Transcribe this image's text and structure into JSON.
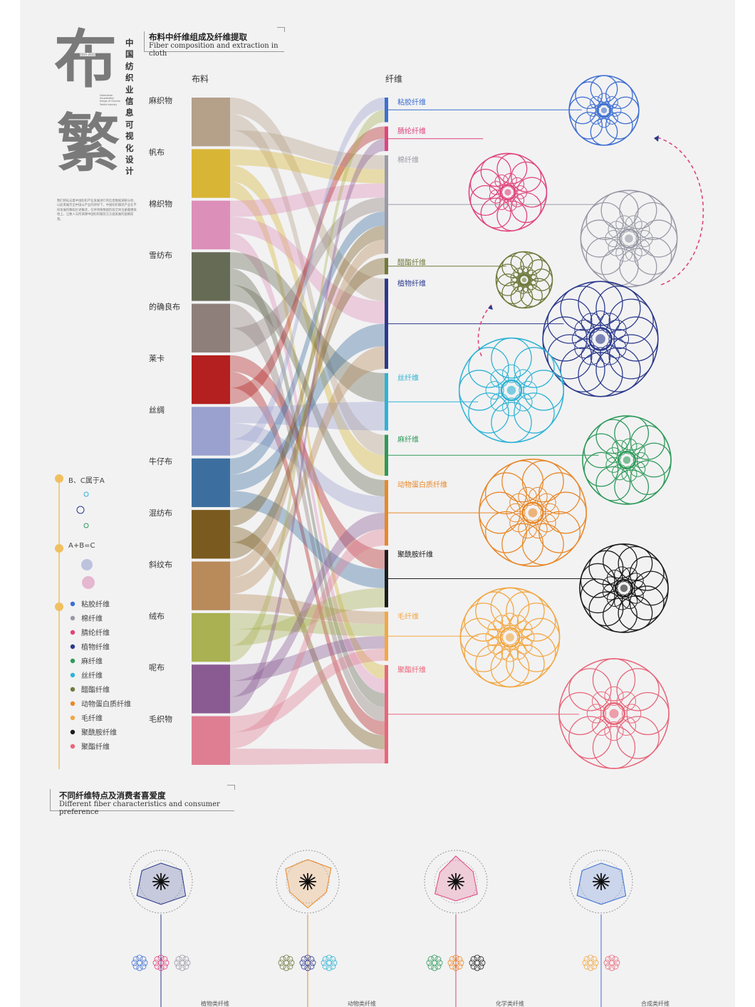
{
  "header": {
    "vertical_title": "中国纺织业信息可视化设计",
    "big_chars": [
      "布",
      "繁"
    ],
    "year_tag": "2021-2022",
    "small_en": "Information Visualization Design of Chinese Textile Industry",
    "intro_text": "我们将标志着中国纺织产业发展进行的信息数据调研分析，以此来展示出中国从产业的领导下，中国纺织服装产业在不同发展的舞蹈论述概述，在并将络数据阶段全体注册最模拟地上，让数人向所调课中国纺织服装方方面发展的面朝前景。"
  },
  "section1": {
    "title_cn": "布料中纤维组成及纤维提取",
    "title_en": "Fiber composition and extraction in cloth",
    "fabric_header": "布料",
    "fiber_header": "纤维"
  },
  "section2": {
    "title_cn": "不同纤维特点及消费者喜爱度",
    "title_en": "Different fiber characteristics and consumer preference",
    "group_labels": [
      "植物类纤维",
      "动物类纤维",
      "化学类纤维",
      "合成类纤维"
    ]
  },
  "legend_explain": [
    {
      "text": "B、C属于A"
    },
    {
      "text": "A+B=C"
    }
  ],
  "legend_fibers": [
    {
      "label": "粘胶纤维",
      "color": "#3e6fd1"
    },
    {
      "label": "棉纤维",
      "color": "#9a9aa6"
    },
    {
      "label": "腈纶纤维",
      "color": "#e0457c"
    },
    {
      "label": "植物纤维",
      "color": "#2c3a8c"
    },
    {
      "label": "麻纤维",
      "color": "#2f9a5a"
    },
    {
      "label": "丝纤维",
      "color": "#2fb3d4"
    },
    {
      "label": "醋酯纤维",
      "color": "#6f7a3c"
    },
    {
      "label": "动物蛋白质纤维",
      "color": "#e8892a"
    },
    {
      "label": "毛纤维",
      "color": "#f2a845"
    },
    {
      "label": "聚酰胺纤维",
      "color": "#1d1d1d"
    },
    {
      "label": "聚酯纤维",
      "color": "#e8677a"
    }
  ],
  "chart_data": {
    "type": "sankey",
    "title": "布料中纤维组成及纤维提取",
    "fabrics": [
      {
        "label": "麻织物",
        "color": "#b5a08a"
      },
      {
        "label": "帆布",
        "color": "#d8b535"
      },
      {
        "label": "棉织物",
        "color": "#dc8fb9"
      },
      {
        "label": "雪纺布",
        "color": "#666b55"
      },
      {
        "label": "的确良布",
        "color": "#8f7f7b"
      },
      {
        "label": "莱卡",
        "color": "#b41f1f"
      },
      {
        "label": "丝绸",
        "color": "#9aa1cf"
      },
      {
        "label": "牛仔布",
        "color": "#3c6fa0"
      },
      {
        "label": "混纺布",
        "color": "#7a5a1e"
      },
      {
        "label": "斜纹布",
        "color": "#b98a5a"
      },
      {
        "label": "绒布",
        "color": "#a9b152"
      },
      {
        "label": "呢布",
        "color": "#8a5a92"
      },
      {
        "label": "毛织物",
        "color": "#df7e92"
      }
    ],
    "fibers": [
      {
        "label": "粘胶纤维",
        "color": "#3e6fd1",
        "weight": 3
      },
      {
        "label": "腈纶纤维",
        "color": "#e0457c",
        "weight": 3
      },
      {
        "label": "棉纤维",
        "color": "#9a9aa6",
        "weight": 12
      },
      {
        "label": "醋酯纤维",
        "color": "#6f7a3c",
        "weight": 2
      },
      {
        "label": "植物纤维",
        "color": "#2c3a8c",
        "weight": 11
      },
      {
        "label": "丝纤维",
        "color": "#2fb3d4",
        "weight": 7
      },
      {
        "label": "麻纤维",
        "color": "#2f9a5a",
        "weight": 5
      },
      {
        "label": "动物蛋白质纤维",
        "color": "#e8892a",
        "weight": 8
      },
      {
        "label": "聚酰胺纤维",
        "color": "#1d1d1d",
        "weight": 7
      },
      {
        "label": "毛纤维",
        "color": "#f2a845",
        "weight": 6
      },
      {
        "label": "聚酯纤维",
        "color": "#e8677a",
        "weight": 12
      }
    ],
    "links": [
      [
        "麻织物",
        "植物纤维"
      ],
      [
        "麻织物",
        "麻纤维"
      ],
      [
        "麻织物",
        "棉纤维"
      ],
      [
        "帆布",
        "棉纤维"
      ],
      [
        "帆布",
        "麻纤维"
      ],
      [
        "帆布",
        "聚酯纤维"
      ],
      [
        "棉织物",
        "棉纤维"
      ],
      [
        "棉织物",
        "植物纤维"
      ],
      [
        "棉织物",
        "聚酯纤维"
      ],
      [
        "雪纺布",
        "丝纤维"
      ],
      [
        "雪纺布",
        "聚酯纤维"
      ],
      [
        "雪纺布",
        "动物蛋白质纤维"
      ],
      [
        "的确良布",
        "聚酯纤维"
      ],
      [
        "的确良布",
        "棉纤维"
      ],
      [
        "莱卡",
        "聚酰胺纤维"
      ],
      [
        "莱卡",
        "聚酯纤维"
      ],
      [
        "莱卡",
        "腈纶纤维"
      ],
      [
        "丝绸",
        "丝纤维"
      ],
      [
        "丝绸",
        "动物蛋白质纤维"
      ],
      [
        "丝绸",
        "粘胶纤维"
      ],
      [
        "牛仔布",
        "棉纤维"
      ],
      [
        "牛仔布",
        "植物纤维"
      ],
      [
        "牛仔布",
        "聚酰胺纤维"
      ],
      [
        "混纺布",
        "棉纤维"
      ],
      [
        "混纺布",
        "聚酯纤维"
      ],
      [
        "混纺布",
        "醋酯纤维"
      ],
      [
        "斜纹布",
        "棉纤维"
      ],
      [
        "斜纹布",
        "植物纤维"
      ],
      [
        "斜纹布",
        "毛纤维"
      ],
      [
        "绒布",
        "毛纤维"
      ],
      [
        "绒布",
        "聚酰胺纤维"
      ],
      [
        "绒布",
        "粘胶纤维"
      ],
      [
        "呢布",
        "毛纤维"
      ],
      [
        "呢布",
        "动物蛋白质纤维"
      ],
      [
        "呢布",
        "腈纶纤维"
      ],
      [
        "毛织物",
        "毛纤维"
      ],
      [
        "毛织物",
        "动物蛋白质纤维"
      ],
      [
        "毛织物",
        "聚酯纤维"
      ]
    ],
    "rosette_colors": [
      "#3e6fd1",
      "#e0457c",
      "#9a9aa6",
      "#6f7a3c",
      "#2c3a8c",
      "#2fb3d4",
      "#2f9a5a",
      "#e8892a",
      "#1d1d1d",
      "#f2a845",
      "#e8677a"
    ],
    "radar_fill_colors": [
      "#2c3a8c",
      "#e8892a",
      "#e0457c",
      "#3e6fd1"
    ]
  }
}
